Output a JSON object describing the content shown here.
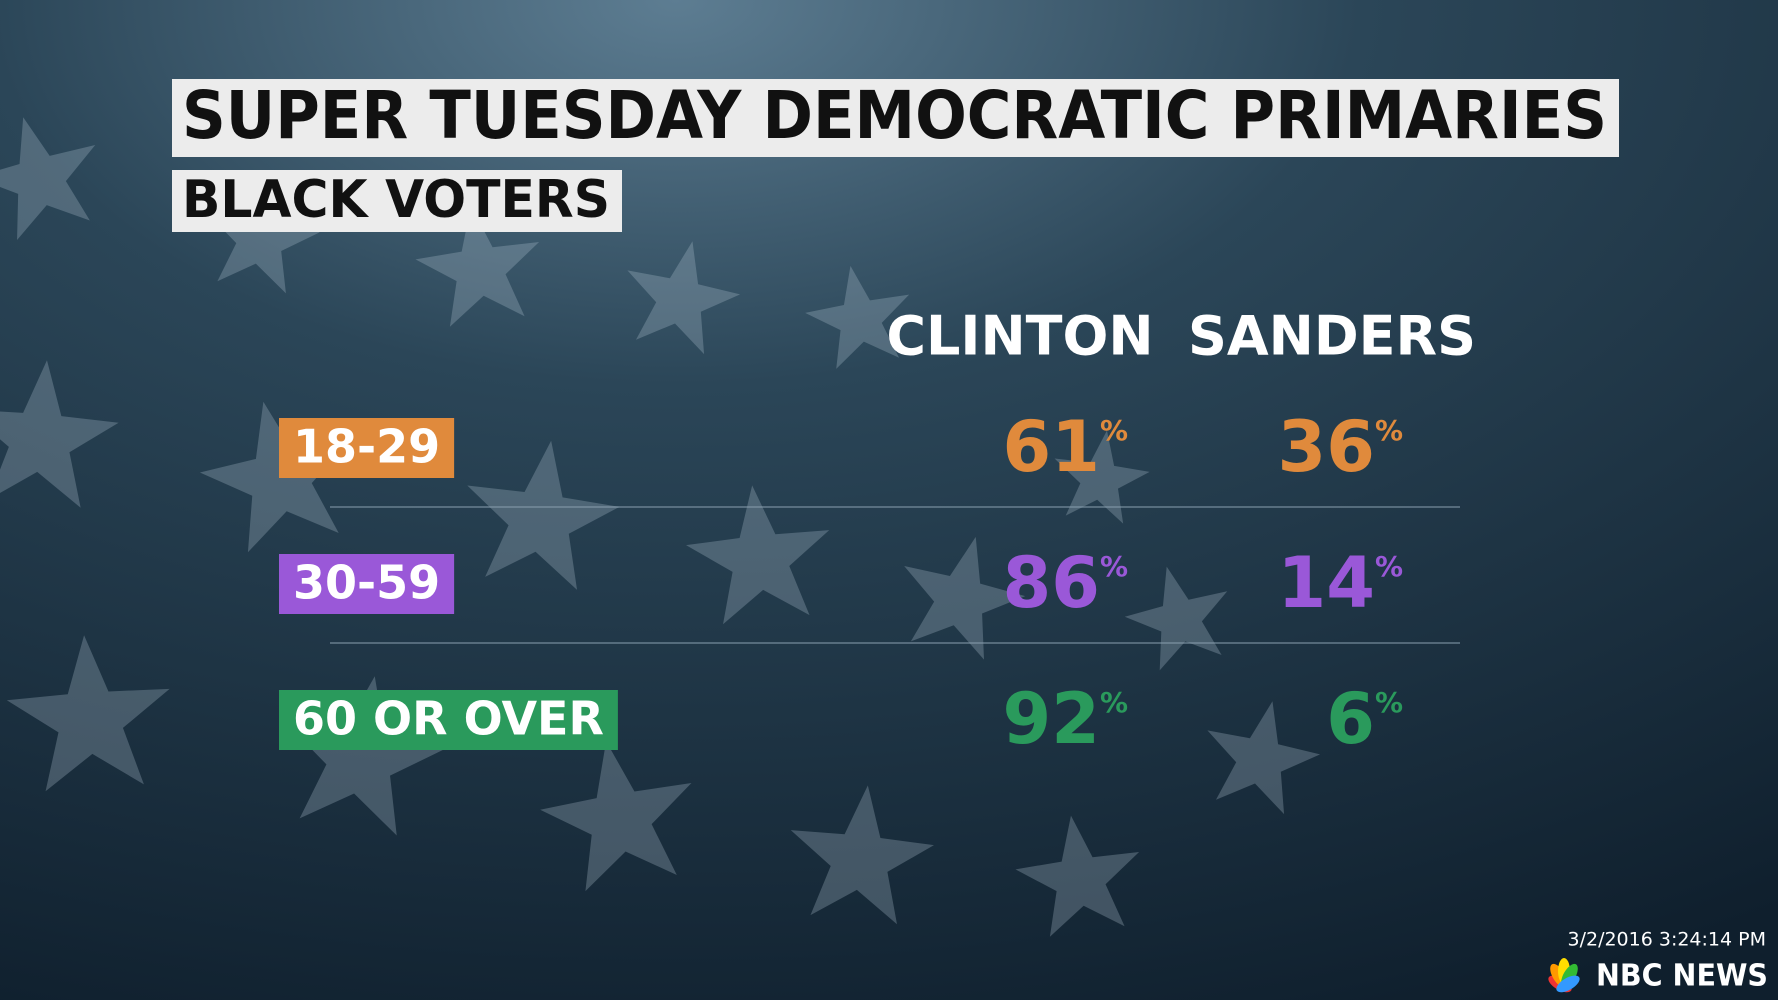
{
  "header": {
    "title": "SUPER TUESDAY DEMOCRATIC PRIMARIES",
    "subtitle": "BLACK VOTERS"
  },
  "table": {
    "columns": [
      "CLINTON",
      "SANDERS"
    ],
    "rows": [
      {
        "label": "18-29",
        "color": "#e08a3c",
        "values": [
          "61%",
          "36%"
        ]
      },
      {
        "label": "30-59",
        "color": "#9a58d8",
        "values": [
          "86%",
          "14%"
        ]
      },
      {
        "label": "60 OR OVER",
        "color": "#2a9a5c",
        "values": [
          "92%",
          "6%"
        ]
      }
    ]
  },
  "footer": {
    "timestamp": "3/2/2016 3:24:14 PM",
    "logo": "NBC NEWS"
  }
}
